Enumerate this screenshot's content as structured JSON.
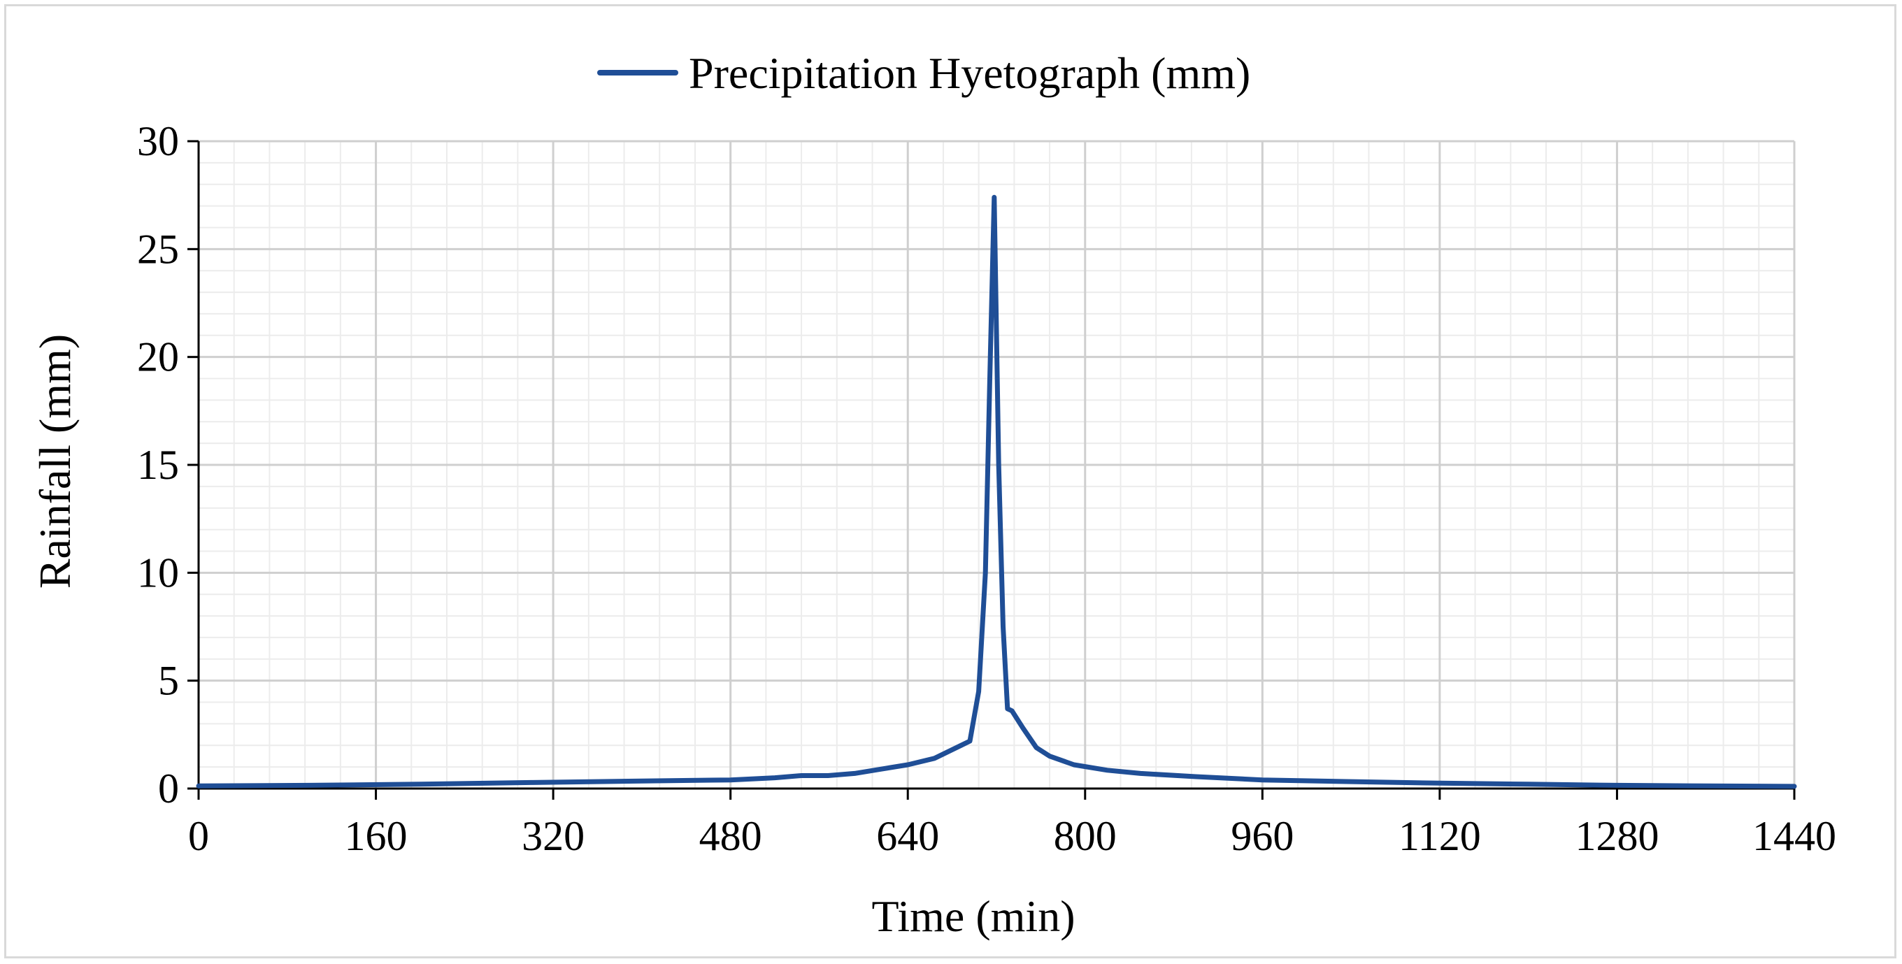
{
  "chart_data": {
    "type": "line",
    "title": "",
    "xlabel": "Time (min)",
    "ylabel": "Rainfall (mm)",
    "xlim": [
      0,
      1440
    ],
    "ylim": [
      0,
      30
    ],
    "x_ticks": [
      0,
      160,
      320,
      480,
      640,
      800,
      960,
      1120,
      1280,
      1440
    ],
    "y_ticks": [
      0,
      5,
      10,
      15,
      20,
      25,
      30
    ],
    "x_minor_step": 32,
    "y_minor_step": 1,
    "grid": true,
    "legend_position": "top-center",
    "series": [
      {
        "name": "Precipitation Hyetograph (mm)",
        "color": "#1f4e96",
        "x": [
          0,
          100,
          200,
          300,
          400,
          480,
          520,
          544,
          568,
          592,
          616,
          640,
          664,
          688,
          696,
          704,
          710,
          714,
          718,
          722,
          726,
          730,
          734,
          744,
          756,
          768,
          790,
          820,
          850,
          900,
          960,
          1040,
          1120,
          1200,
          1280,
          1360,
          1440
        ],
        "values": [
          0.12,
          0.15,
          0.2,
          0.28,
          0.35,
          0.4,
          0.5,
          0.6,
          0.6,
          0.7,
          0.9,
          1.1,
          1.4,
          2.0,
          2.2,
          4.5,
          10.0,
          19.0,
          27.4,
          15.0,
          7.5,
          3.7,
          3.6,
          2.8,
          1.9,
          1.5,
          1.1,
          0.85,
          0.7,
          0.55,
          0.4,
          0.32,
          0.25,
          0.2,
          0.15,
          0.12,
          0.1
        ]
      }
    ]
  }
}
